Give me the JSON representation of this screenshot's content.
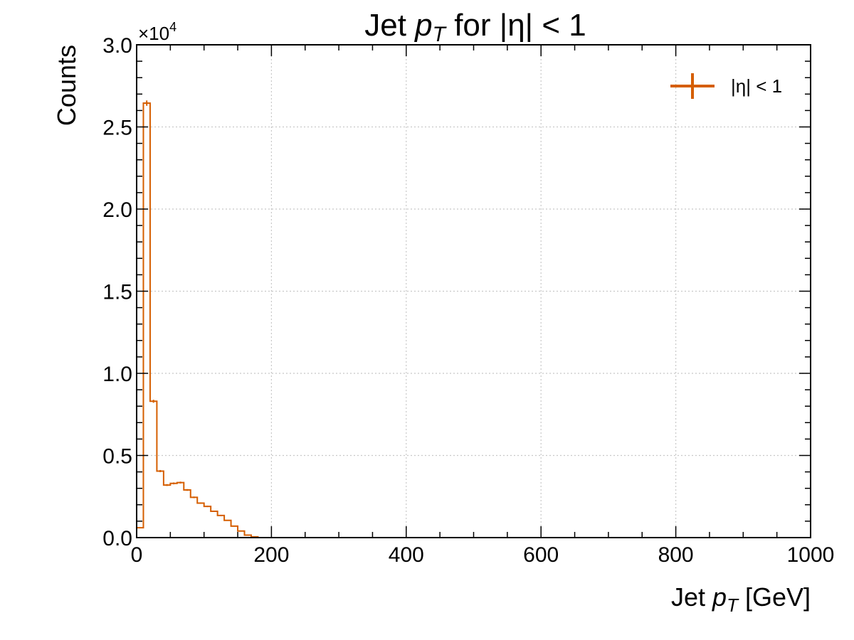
{
  "chart_data": {
    "type": "histogram",
    "title_main": "Jet ",
    "title_var": "p",
    "title_sub": "T",
    "title_rest": " for |η| < 1",
    "xlabel_main": "Jet ",
    "xlabel_var": "p",
    "xlabel_sub": "T",
    "xlabel_rest": " [GeV]",
    "ylabel": "Counts",
    "y_multiplier": "×10",
    "y_multiplier_exp": "4",
    "xlim": [
      0,
      1000
    ],
    "ylim": [
      0,
      30000
    ],
    "x_ticks": [
      0,
      200,
      400,
      600,
      800,
      1000
    ],
    "y_ticks": [
      0,
      5000,
      10000,
      15000,
      20000,
      25000,
      30000
    ],
    "x_tick_labels": [
      "0",
      "200",
      "400",
      "600",
      "800",
      "1000"
    ],
    "y_tick_labels": [
      "0.0",
      "0.5",
      "1.0",
      "1.5",
      "2.0",
      "2.5",
      "3.0"
    ],
    "grid": true,
    "legend_position": "top-right",
    "series": [
      {
        "name": "|η| < 1",
        "color": "#d55e00",
        "bin_edges": [
          0,
          10,
          20,
          30,
          40,
          50,
          60,
          70,
          80,
          90,
          100,
          110,
          120,
          130,
          140,
          150,
          160,
          170,
          180
        ],
        "counts": [
          600,
          26450,
          8300,
          4050,
          3200,
          3300,
          3350,
          2900,
          2450,
          2100,
          1900,
          1600,
          1350,
          1050,
          700,
          400,
          150,
          50
        ]
      }
    ]
  }
}
